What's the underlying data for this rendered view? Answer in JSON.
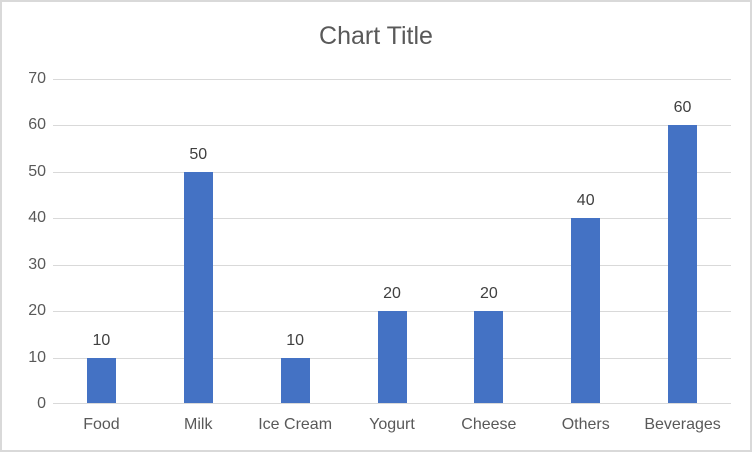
{
  "chart_data": {
    "type": "bar",
    "title": "Chart Title",
    "categories": [
      "Food",
      "Milk",
      "Ice Cream",
      "Yogurt",
      "Cheese",
      "Others",
      "Beverages"
    ],
    "values": [
      10,
      50,
      10,
      20,
      20,
      40,
      60
    ],
    "data_labels": [
      "10",
      "50",
      "10",
      "20",
      "20",
      "40",
      "60"
    ],
    "xlabel": "",
    "ylabel": "",
    "ylim": [
      0,
      70
    ],
    "yticks": [
      0,
      10,
      20,
      30,
      40,
      50,
      60,
      70
    ],
    "grid": true,
    "legend": false,
    "colors": {
      "bar": "#4472C4",
      "gridline": "#D9D9D9",
      "axis_line": "#D9D9D9",
      "tick_text": "#595959",
      "data_label_text": "#404040",
      "title_text": "#595959",
      "border": "#D9D9D9",
      "background": "#FFFFFF"
    }
  }
}
